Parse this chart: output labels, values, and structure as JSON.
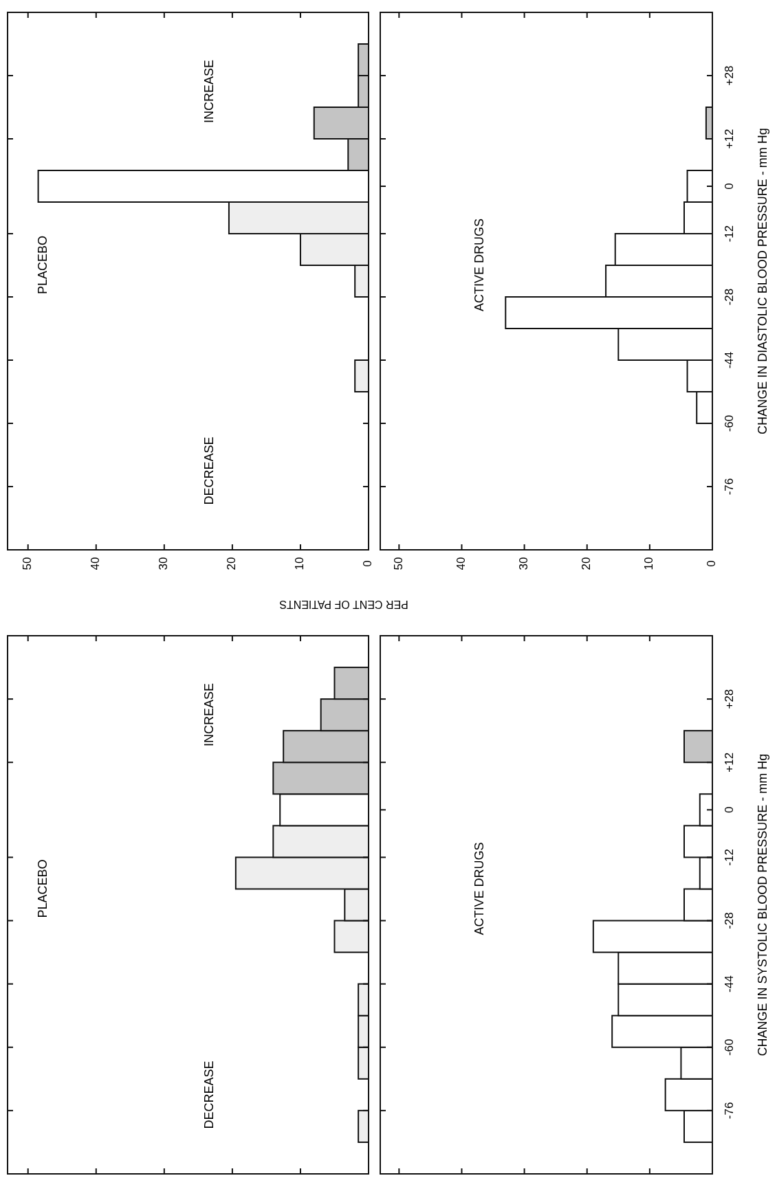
{
  "chart_data": [
    {
      "type": "histogram",
      "orientation": "horizontal",
      "bins": [
        -92,
        -84,
        -76,
        -68,
        -60,
        -52,
        -44,
        -36,
        -28,
        -20,
        -12,
        -4,
        4,
        12,
        20,
        28,
        36,
        44
      ],
      "values": [
        0,
        0,
        0,
        0,
        0,
        2,
        0,
        0,
        2,
        10,
        20.5,
        48.5,
        3,
        8,
        1.5,
        1.5,
        0
      ],
      "colors": [
        "#eeeeee",
        "#eeeeee",
        "#eeeeee",
        "#eeeeee",
        "#eeeeee",
        "#eeeeee",
        "#eeeeee",
        "#eeeeee",
        "#eeeeee",
        "#eeeeee",
        "#eeeeee",
        "#ffffff",
        "#c4c4c4",
        "#c4c4c4",
        "#c4c4c4",
        "#c4c4c4",
        "#c4c4c4"
      ],
      "xlim": [
        53,
        0
      ],
      "ylim": [
        -92,
        44
      ],
      "xticks": [
        50,
        40,
        30,
        20,
        10,
        0
      ],
      "yticks": [
        {
          "value": -76,
          "label": null
        },
        {
          "value": -60,
          "label": null
        },
        {
          "value": -44,
          "label": null
        },
        {
          "value": -28,
          "label": null
        },
        {
          "value": -12,
          "label": null
        },
        {
          "value": 12,
          "label": null
        },
        {
          "value": 28,
          "label": null
        }
      ],
      "tick_labels": "x",
      "xlabel": "PER CENT OF PATIENTS",
      "annotations": [
        "PLACEBO",
        "INCREASE",
        "DECREASE"
      ]
    },
    {
      "type": "histogram",
      "orientation": "horizontal",
      "bins": [
        -92,
        -84,
        -76,
        -68,
        -60,
        -52,
        -44,
        -36,
        -28,
        -20,
        -12,
        -4,
        4,
        12,
        20,
        28,
        36,
        44
      ],
      "values": [
        0,
        0,
        0,
        0,
        2.5,
        4,
        15,
        33,
        17,
        15.5,
        4.5,
        4,
        0,
        1,
        0,
        0,
        0
      ],
      "colors": [
        "#ffffff",
        "#ffffff",
        "#ffffff",
        "#ffffff",
        "#ffffff",
        "#ffffff",
        "#ffffff",
        "#ffffff",
        "#ffffff",
        "#ffffff",
        "#ffffff",
        "#ffffff",
        "#c4c4c4",
        "#c4c4c4",
        "#c4c4c4",
        "#c4c4c4",
        "#c4c4c4"
      ],
      "xlim": [
        53,
        0
      ],
      "ylim": [
        -92,
        44
      ],
      "xticks": [
        50,
        40,
        30,
        20,
        10,
        0
      ],
      "yticks": [
        -76,
        -60,
        -44,
        -28,
        -12,
        0,
        {
          "value": 12,
          "label": "+12"
        },
        {
          "value": 28,
          "label": "+28"
        }
      ],
      "ylabel": "CHANGE IN DIASTOLIC BLOOD PRESSURE - mm Hg",
      "annotations": [
        "ACTIVE DRUGS"
      ]
    },
    {
      "type": "histogram",
      "orientation": "horizontal",
      "bins": [
        -92,
        -84,
        -76,
        -68,
        -60,
        -52,
        -44,
        -36,
        -28,
        -20,
        -12,
        -4,
        4,
        12,
        20,
        28,
        36,
        44
      ],
      "values": [
        0,
        1.5,
        0,
        1.5,
        1.5,
        1.5,
        0,
        5,
        3.5,
        19.5,
        14,
        13,
        14,
        12.5,
        7,
        5,
        0
      ],
      "colors": [
        "#eeeeee",
        "#eeeeee",
        "#eeeeee",
        "#eeeeee",
        "#eeeeee",
        "#eeeeee",
        "#eeeeee",
        "#eeeeee",
        "#eeeeee",
        "#eeeeee",
        "#eeeeee",
        "#ffffff",
        "#c4c4c4",
        "#c4c4c4",
        "#c4c4c4",
        "#c4c4c4",
        "#c4c4c4"
      ],
      "xlim": [
        53,
        0
      ],
      "ylim": [
        -92,
        44
      ],
      "xticks": [
        50,
        40,
        30,
        20,
        10,
        0
      ],
      "yticks": [
        {
          "value": -76,
          "label": null
        },
        {
          "value": -60,
          "label": null
        },
        {
          "value": -44,
          "label": null
        },
        {
          "value": -28,
          "label": null
        },
        {
          "value": -12,
          "label": null
        },
        {
          "value": 12,
          "label": null
        },
        {
          "value": 28,
          "label": null
        }
      ],
      "tick_labels": false,
      "annotations": [
        "PLACEBO",
        "INCREASE",
        "DECREASE"
      ]
    },
    {
      "type": "histogram",
      "orientation": "horizontal",
      "bins": [
        -92,
        -84,
        -76,
        -68,
        -60,
        -52,
        -44,
        -36,
        -28,
        -20,
        -12,
        -4,
        4,
        12,
        20,
        28,
        36,
        44
      ],
      "values": [
        0,
        4.5,
        7.5,
        5,
        16,
        15,
        15,
        19,
        4.5,
        2,
        4.5,
        2,
        0,
        4.5,
        0,
        0,
        0
      ],
      "colors": [
        "#ffffff",
        "#ffffff",
        "#ffffff",
        "#ffffff",
        "#ffffff",
        "#ffffff",
        "#ffffff",
        "#ffffff",
        "#ffffff",
        "#ffffff",
        "#ffffff",
        "#ffffff",
        "#c4c4c4",
        "#c4c4c4",
        "#c4c4c4",
        "#c4c4c4",
        "#c4c4c4"
      ],
      "xlim": [
        53,
        0
      ],
      "ylim": [
        -92,
        44
      ],
      "xticks": [
        50,
        40,
        30,
        20,
        10,
        0
      ],
      "yticks": [
        -76,
        -60,
        -44,
        -28,
        -12,
        0,
        {
          "value": 12,
          "label": "+12"
        },
        {
          "value": 28,
          "label": "+28"
        }
      ],
      "tick_labels": "y",
      "ylabel": "CHANGE IN SYSTOLIC BLOOD PRESSURE - mm Hg",
      "annotations": [
        "ACTIVE DRUGS"
      ]
    }
  ]
}
